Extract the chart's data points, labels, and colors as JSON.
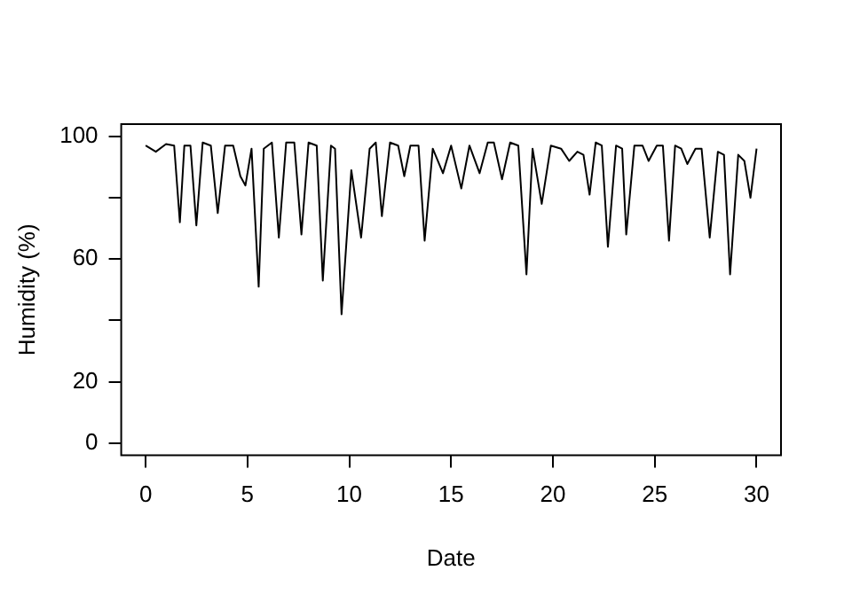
{
  "chart_data": {
    "type": "line",
    "xlabel": "Date",
    "ylabel": "Humidity (%)",
    "color": "#000000",
    "marker": "none",
    "line_style": "solid",
    "grid": false,
    "legend": false,
    "xlim": [
      -1.2,
      31.2
    ],
    "xticks": [
      0,
      5,
      10,
      15,
      20,
      25,
      30
    ],
    "ylim": [
      -4,
      104
    ],
    "yticks": [
      0,
      20,
      {
        "value": 40,
        "label": null
      },
      60,
      {
        "value": 80,
        "label": null
      },
      100
    ],
    "x": [
      0,
      0.5,
      1,
      1.4,
      1.68,
      1.9,
      2.2,
      2.49,
      2.8,
      3.2,
      3.54,
      3.9,
      4.3,
      4.65,
      4.9,
      5.2,
      5.55,
      5.8,
      6.2,
      6.54,
      6.9,
      7.3,
      7.65,
      8.0,
      8.4,
      8.7,
      9.1,
      9.3,
      9.62,
      10.1,
      10.58,
      11.0,
      11.3,
      11.6,
      12.0,
      12.4,
      12.7,
      13.0,
      13.4,
      13.7,
      14.1,
      14.6,
      15.0,
      15.5,
      15.9,
      16.4,
      16.8,
      17.1,
      17.5,
      17.9,
      18.3,
      18.7,
      19.0,
      19.45,
      19.9,
      20.4,
      20.8,
      21.2,
      21.5,
      21.8,
      22.1,
      22.4,
      22.7,
      23.1,
      23.4,
      23.6,
      24.0,
      24.4,
      24.7,
      25.1,
      25.4,
      25.7,
      26.0,
      26.3,
      26.6,
      27.0,
      27.3,
      27.7,
      28.1,
      28.4,
      28.7,
      29.1,
      29.4,
      29.7,
      30
    ],
    "values": [
      97,
      95,
      97.5,
      97,
      72,
      97,
      97,
      71,
      98,
      97,
      75,
      97,
      97,
      87,
      84,
      96,
      51,
      96,
      98,
      67,
      98,
      98,
      68,
      98,
      97,
      53,
      97,
      96,
      42,
      89,
      67,
      96,
      98,
      74,
      98,
      97,
      87,
      97,
      97,
      66,
      96,
      88,
      97,
      83,
      97,
      88,
      98,
      98,
      86,
      98,
      97,
      55,
      96,
      78,
      97,
      96,
      92,
      95,
      94,
      81,
      98,
      97,
      64,
      97,
      96,
      68,
      97,
      97,
      92,
      97,
      97,
      66,
      97,
      96,
      91,
      96,
      96,
      67,
      95,
      94,
      55,
      94,
      92,
      80,
      96
    ]
  }
}
